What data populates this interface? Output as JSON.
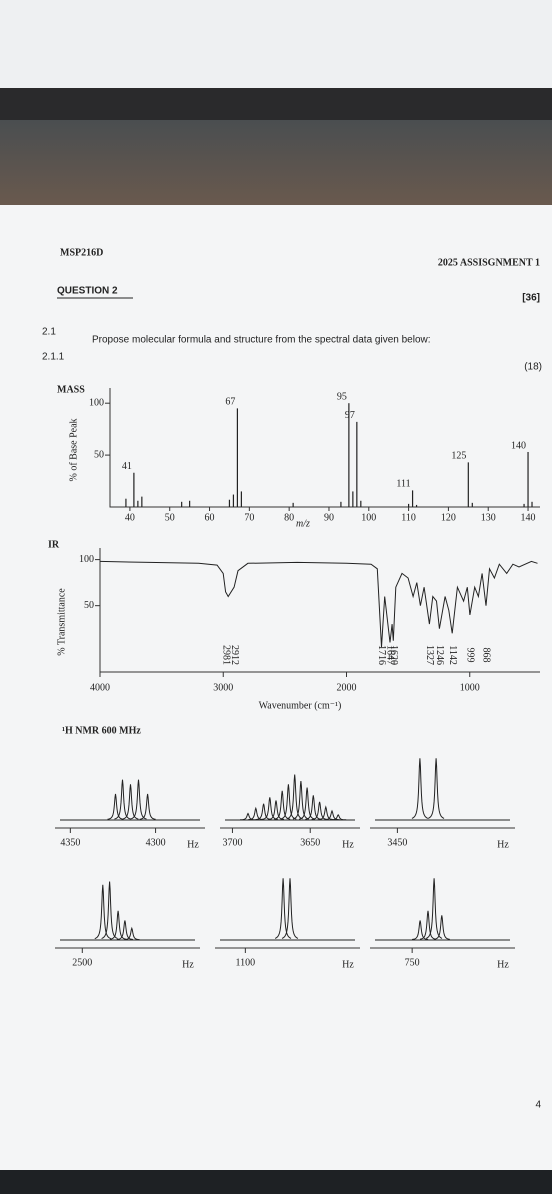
{
  "header": {
    "course": "MSP216D",
    "assignment": "2025 ASSISGNMENT 1",
    "page_number": "4"
  },
  "question": {
    "title": "QUESTION 2",
    "marks": "[36]",
    "number": "2.1",
    "text": "Propose molecular formula and structure from the spectral data given below:",
    "sub_number": "2.1.1",
    "sub_marks": "(18)"
  },
  "mass": {
    "label": "MASS",
    "y_label": "% of Base Peak",
    "x_label": "m/z",
    "xlim": [
      35,
      142
    ],
    "ylim": [
      0,
      105
    ],
    "xticks": [
      40,
      50,
      60,
      70,
      80,
      90,
      100,
      110,
      120,
      130,
      140
    ],
    "yticks": [
      50,
      100
    ],
    "peaks": {
      "x": [
        41,
        67,
        95,
        97,
        111,
        125,
        140
      ],
      "values": [
        33,
        95,
        100,
        82,
        16,
        43,
        53
      ]
    },
    "minor": {
      "x": [
        39,
        42,
        43,
        53,
        55,
        65,
        66,
        68,
        81,
        93,
        96,
        98,
        110,
        112,
        126,
        139,
        141
      ],
      "values": [
        8,
        6,
        10,
        5,
        6,
        7,
        12,
        15,
        4,
        5,
        15,
        6,
        3,
        2,
        4,
        3,
        5
      ]
    }
  },
  "ir": {
    "label": "IR",
    "y_label": "% Transmittance",
    "x_label": "Wavenumber (cm⁻¹)",
    "xlim": [
      4000,
      430
    ],
    "ylim": [
      -22,
      105
    ],
    "xticks": [
      4000,
      3000,
      2000,
      1000
    ],
    "yticks": [
      50,
      100
    ],
    "curve": {
      "x": [
        4000,
        3600,
        3200,
        3050,
        3000,
        2981,
        2960,
        2912,
        2880,
        2800,
        2400,
        2000,
        1800,
        1750,
        1716,
        1690,
        1660,
        1647,
        1630,
        1620,
        1600,
        1550,
        1500,
        1460,
        1430,
        1400,
        1370,
        1327,
        1300,
        1270,
        1246,
        1200,
        1170,
        1142,
        1100,
        1050,
        1020,
        999,
        960,
        930,
        900,
        868,
        840,
        800,
        760,
        700,
        650,
        600,
        500,
        450
      ],
      "values": [
        98,
        97,
        96,
        94,
        85,
        65,
        60,
        70,
        88,
        96,
        97,
        96,
        95,
        90,
        5,
        60,
        25,
        10,
        30,
        12,
        70,
        85,
        80,
        60,
        75,
        50,
        70,
        30,
        60,
        55,
        25,
        60,
        45,
        20,
        70,
        55,
        70,
        40,
        70,
        60,
        85,
        50,
        90,
        80,
        95,
        85,
        95,
        92,
        98,
        96
      ]
    },
    "peak_labels": [
      2912,
      2981,
      1716,
      1647,
      1620,
      1327,
      1246,
      1142,
      999,
      868
    ]
  },
  "nmr": {
    "title": "¹H NMR 600 MHz",
    "unit": "Hz",
    "panels": [
      {
        "xlim": [
          4359,
          4271
        ],
        "ticks": [
          4350,
          4300
        ],
        "peaks": {
          "x": [
            4323.5,
            4319.4,
            4314.7,
            4310,
            4304.7
          ],
          "values": [
            40,
            62,
            55,
            62,
            40
          ]
        }
      },
      {
        "xlim": [
          3708,
          3618
        ],
        "ticks": [
          3700,
          3650
        ],
        "peaks": {
          "x": [
            3690,
            3685,
            3680,
            3676,
            3672,
            3668,
            3664,
            3660,
            3656,
            3652,
            3648,
            3644,
            3640,
            3636,
            3632
          ],
          "values": [
            10,
            18,
            25,
            35,
            30,
            45,
            55,
            70,
            60,
            50,
            38,
            28,
            20,
            14,
            8
          ]
        }
      },
      {
        "xlim": [
          3467,
          3377
        ],
        "ticks": [
          3450
        ],
        "peaks": {
          "x": [
            3436,
            3426
          ],
          "values": [
            95,
            95
          ]
        }
      },
      {
        "xlim": [
          2516,
          2431
        ],
        "ticks": [
          2500
        ],
        "peaks": {
          "x": [
            2488,
            2484,
            2479,
            2475,
            2471
          ],
          "values": [
            85,
            90,
            45,
            30,
            18
          ]
        }
      },
      {
        "xlim": [
          1118,
          1032
        ],
        "ticks": [
          1100
        ],
        "peaks": {
          "x": [
            1077.6,
            1073.5
          ],
          "values": [
            95,
            95
          ]
        }
      },
      {
        "xlim": [
          775,
          689
        ],
        "ticks": [
          750
        ],
        "peaks": {
          "x": [
            745.3,
            740.6,
            737,
            732.4
          ],
          "values": [
            30,
            45,
            95,
            38
          ]
        }
      }
    ]
  }
}
